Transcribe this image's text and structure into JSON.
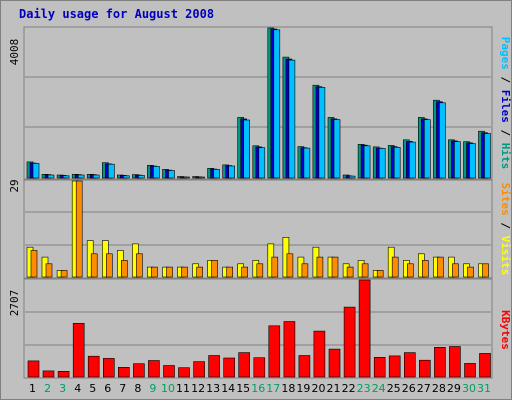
{
  "chart_data": {
    "type": "bar",
    "title": "Daily usage for August 2008",
    "categories": [
      "1",
      "2",
      "3",
      "4",
      "5",
      "6",
      "7",
      "8",
      "9",
      "10",
      "11",
      "12",
      "13",
      "14",
      "15",
      "16",
      "17",
      "18",
      "19",
      "20",
      "21",
      "22",
      "23",
      "24",
      "25",
      "26",
      "27",
      "28",
      "29",
      "30",
      "31"
    ],
    "weekend_days": [
      "2",
      "3",
      "9",
      "10",
      "16",
      "17",
      "23",
      "24",
      "30",
      "31"
    ],
    "panels": [
      {
        "name": "traffic",
        "axis_max_label": "4008",
        "ylim": [
          0,
          4008
        ],
        "legend": [
          "Pages",
          "Files",
          "Hits"
        ],
        "series": [
          {
            "name": "Hits",
            "values": [
              430,
              100,
              80,
              100,
              100,
              410,
              80,
              90,
              340,
              230,
              40,
              40,
              260,
              350,
              1620,
              860,
              4008,
              3230,
              840,
              2480,
              1620,
              80,
              900,
              830,
              870,
              1020,
              1620,
              2080,
              1020,
              970,
              1250
            ]
          },
          {
            "name": "Files",
            "values": [
              400,
              90,
              70,
              90,
              90,
              380,
              70,
              80,
              320,
              210,
              30,
              30,
              240,
              330,
              1580,
              830,
              3980,
              3180,
              810,
              2440,
              1580,
              60,
              880,
              800,
              840,
              980,
              1580,
              2040,
              990,
              940,
              1210
            ]
          },
          {
            "name": "Pages",
            "values": [
              390,
              80,
              60,
              80,
              80,
              370,
              60,
              70,
              310,
              200,
              20,
              20,
              230,
              320,
              1550,
              810,
              3960,
              3150,
              800,
              2420,
              1560,
              50,
              860,
              790,
              820,
              960,
              1560,
              2010,
              970,
              920,
              1190
            ]
          }
        ]
      },
      {
        "name": "visitors",
        "axis_max_label": "29",
        "ylim": [
          0,
          29
        ],
        "legend": [
          "Visits",
          "Sites"
        ],
        "series": [
          {
            "name": "Visits",
            "values": [
              9,
              6,
              2,
              29,
              11,
              11,
              8,
              10,
              3,
              3,
              3,
              4,
              5,
              3,
              4,
              5,
              10,
              12,
              6,
              9,
              6,
              4,
              5,
              2,
              9,
              5,
              7,
              6,
              6,
              4,
              4
            ]
          },
          {
            "name": "Sites",
            "values": [
              8,
              4,
              2,
              29,
              7,
              7,
              5,
              7,
              3,
              3,
              3,
              3,
              5,
              3,
              3,
              4,
              6,
              7,
              4,
              6,
              6,
              3,
              4,
              2,
              6,
              4,
              5,
              6,
              4,
              3,
              4
            ]
          }
        ]
      },
      {
        "name": "kbytes",
        "axis_max_label": "2707",
        "ylim": [
          0,
          2707
        ],
        "legend": [
          "KBytes"
        ],
        "series": [
          {
            "name": "KBytes",
            "values": [
              450,
              170,
              160,
              1500,
              580,
              520,
              270,
              370,
              460,
              320,
              260,
              430,
              600,
              530,
              680,
              540,
              1430,
              1550,
              600,
              1280,
              780,
              1950,
              2707,
              550,
              590,
              680,
              470,
              830,
              850,
              380,
              660
            ]
          }
        ]
      }
    ]
  },
  "colors": {
    "background": "#c0c0c0",
    "frame_light": "#ffffff",
    "frame_dark": "#808080",
    "title_text": "#0000c0",
    "weekday_label": "#000000",
    "weekend_label": "#00a060",
    "gridline": "#808080",
    "hits": "#009a82",
    "files": "#0000cc",
    "pages": "#00c0ff",
    "visits": "#ffff00",
    "sites": "#ff8c00",
    "kbytes": "#ff0000",
    "bar_outline": "#000000"
  }
}
